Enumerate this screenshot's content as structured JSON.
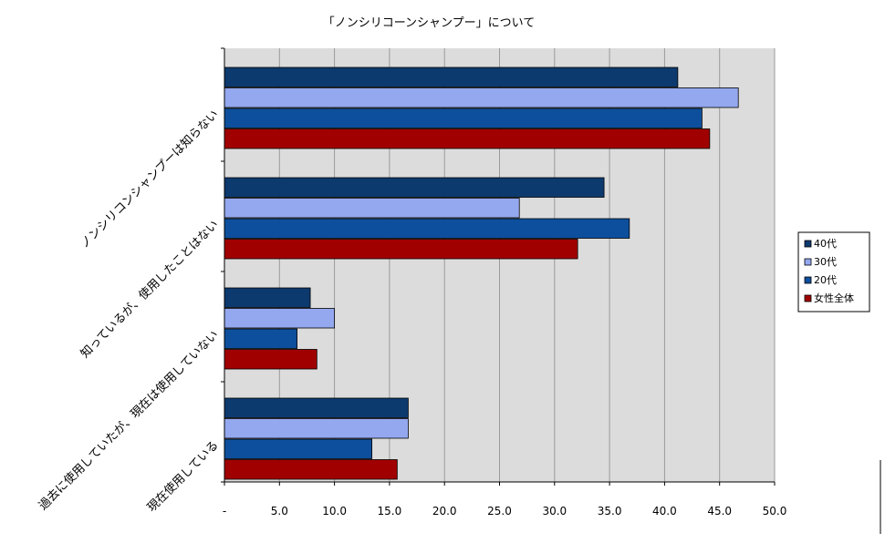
{
  "chart_data": {
    "type": "bar",
    "orientation": "horizontal",
    "title": "「ノンシリコーンシャンプー」について",
    "categories": [
      "ノンシリコンシャンプーは知らない",
      "知っているが、使用したことはない",
      "過去に使用していたが、現在は使用していない",
      "現在使用している"
    ],
    "series": [
      {
        "name": "40代",
        "color": "#0d3a6e",
        "values": [
          41.2,
          34.5,
          7.8,
          16.7
        ]
      },
      {
        "name": "30代",
        "color": "#94a8ef",
        "values": [
          46.7,
          26.8,
          10.0,
          16.7
        ]
      },
      {
        "name": "20代",
        "color": "#0d4f9c",
        "values": [
          43.4,
          36.8,
          6.6,
          13.4
        ]
      },
      {
        "name": "女性全体",
        "color": "#a00000",
        "values": [
          44.1,
          32.1,
          8.4,
          15.7
        ]
      }
    ],
    "xlim": [
      0,
      50
    ],
    "xticks": [
      "-",
      "5.0",
      "10.0",
      "15.0",
      "20.0",
      "25.0",
      "30.0",
      "35.0",
      "40.0",
      "45.0",
      "50.0"
    ],
    "grid": true,
    "legend_position": "right"
  }
}
